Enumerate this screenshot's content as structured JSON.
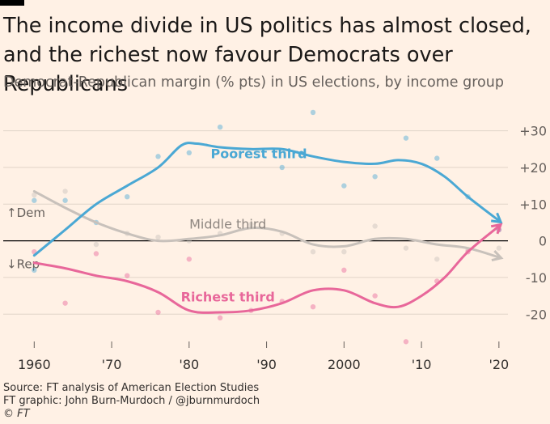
{
  "header": {
    "title": "The income divide in US politics has almost closed, and the richest now favour Democrats over Republicans",
    "subtitle": "Democrat-Republican margin (% pts) in US elections, by income group"
  },
  "footer": {
    "source": "Source: FT analysis of American Election Studies",
    "credit": "FT graphic: John Burn-Murdoch / @jburnmurdoch",
    "copyright": "© FT"
  },
  "colors": {
    "background": "#fff1e5",
    "poorest": "#4aa8d4",
    "middle": "#c8c1bb",
    "richest": "#e8679a"
  },
  "chart_data": {
    "type": "line",
    "title": "The income divide in US politics has almost closed, and the richest now favour Democrats over Republicans",
    "subtitle": "Democrat-Republican margin (% pts) in US elections, by income group",
    "xlim": [
      1956,
      2022
    ],
    "ylim": [
      -27,
      33
    ],
    "x_ticks": [
      1960,
      1970,
      1980,
      1990,
      2000,
      2010,
      2020
    ],
    "x_tick_labels": [
      "1960",
      "'70",
      "'80",
      "'90",
      "2000",
      "'10",
      "'20"
    ],
    "y_ticks": [
      30,
      20,
      10,
      0,
      -10,
      -20
    ],
    "y_tick_labels": [
      "+30",
      "+20",
      "+10",
      "0",
      "-10",
      "-20"
    ],
    "axis_annotations": [
      "↑Dem",
      "↓Rep"
    ],
    "grid": true,
    "series": [
      {
        "name": "Poorest third",
        "color": "#4aa8d4",
        "trend": [
          [
            1960,
            -4
          ],
          [
            1964,
            3
          ],
          [
            1968,
            10
          ],
          [
            1972,
            15
          ],
          [
            1976,
            20
          ],
          [
            1979,
            26
          ],
          [
            1981,
            26.5
          ],
          [
            1984,
            25.5
          ],
          [
            1988,
            25
          ],
          [
            1992,
            25
          ],
          [
            1996,
            23
          ],
          [
            2000,
            21.5
          ],
          [
            2004,
            21
          ],
          [
            2007,
            22
          ],
          [
            2010,
            21
          ],
          [
            2013,
            17.5
          ],
          [
            2016,
            12
          ],
          [
            2020,
            5.5
          ]
        ],
        "points": [
          [
            1960,
            -8
          ],
          [
            1960,
            11
          ],
          [
            1964,
            11
          ],
          [
            1968,
            5
          ],
          [
            1972,
            12
          ],
          [
            1976,
            23
          ],
          [
            1980,
            24
          ],
          [
            1984,
            31
          ],
          [
            1992,
            20
          ],
          [
            1996,
            35
          ],
          [
            2000,
            15
          ],
          [
            2004,
            17.5
          ],
          [
            2008,
            28
          ],
          [
            2012,
            22.5
          ],
          [
            2016,
            12
          ],
          [
            2020,
            3
          ]
        ]
      },
      {
        "name": "Middle third",
        "color": "#c8c1bb",
        "trend": [
          [
            1960,
            13.5
          ],
          [
            1964,
            9
          ],
          [
            1968,
            5
          ],
          [
            1972,
            2
          ],
          [
            1976,
            0
          ],
          [
            1980,
            0.5
          ],
          [
            1984,
            1.5
          ],
          [
            1988,
            3.5
          ],
          [
            1992,
            2.5
          ],
          [
            1996,
            -1
          ],
          [
            2000,
            -1.5
          ],
          [
            2004,
            0.5
          ],
          [
            2008,
            0.5
          ],
          [
            2012,
            -1
          ],
          [
            2016,
            -2
          ],
          [
            2020,
            -4.5
          ]
        ],
        "points": [
          [
            1960,
            12.5
          ],
          [
            1964,
            13.5
          ],
          [
            1968,
            -1
          ],
          [
            1972,
            2
          ],
          [
            1976,
            1
          ],
          [
            1980,
            0
          ],
          [
            1984,
            2
          ],
          [
            1988,
            4.5
          ],
          [
            1992,
            2
          ],
          [
            1996,
            -3
          ],
          [
            2000,
            -3
          ],
          [
            2004,
            4
          ],
          [
            2008,
            -2
          ],
          [
            2012,
            -5
          ],
          [
            2016,
            -2.5
          ],
          [
            2020,
            -2
          ]
        ]
      },
      {
        "name": "Richest third",
        "color": "#e8679a",
        "trend": [
          [
            1960,
            -6
          ],
          [
            1964,
            -7.5
          ],
          [
            1968,
            -9.5
          ],
          [
            1972,
            -11
          ],
          [
            1976,
            -14
          ],
          [
            1980,
            -19
          ],
          [
            1984,
            -19.5
          ],
          [
            1988,
            -19
          ],
          [
            1992,
            -17
          ],
          [
            1996,
            -13.5
          ],
          [
            2000,
            -13.5
          ],
          [
            2004,
            -17
          ],
          [
            2007,
            -18
          ],
          [
            2010,
            -15
          ],
          [
            2013,
            -10
          ],
          [
            2016,
            -3
          ],
          [
            2020,
            4
          ]
        ],
        "points": [
          [
            1960,
            -3
          ],
          [
            1964,
            -17
          ],
          [
            1968,
            -3.5
          ],
          [
            1972,
            -9.5
          ],
          [
            1976,
            -19.5
          ],
          [
            1980,
            -5
          ],
          [
            1984,
            -21
          ],
          [
            1988,
            -19
          ],
          [
            1992,
            -16.5
          ],
          [
            1996,
            -18
          ],
          [
            2000,
            -8
          ],
          [
            2004,
            -15
          ],
          [
            2008,
            -27.5
          ],
          [
            2012,
            -11
          ],
          [
            2016,
            -3
          ],
          [
            2020,
            3
          ]
        ]
      }
    ]
  }
}
